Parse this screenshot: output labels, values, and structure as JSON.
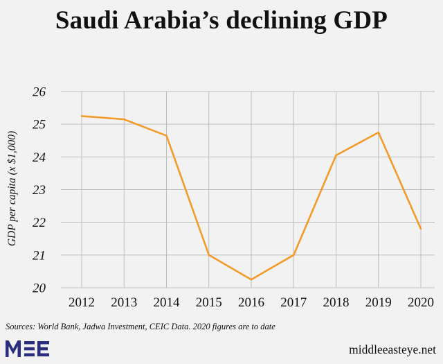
{
  "chart_data": {
    "type": "line",
    "title": "Saudi Arabia’s declining GDP",
    "xlabel": "",
    "ylabel": "GDP per capita (x $1,000)",
    "categories": [
      "2012",
      "2013",
      "2014",
      "2015",
      "2016",
      "2017",
      "2018",
      "2019",
      "2020"
    ],
    "series": [
      {
        "name": "GDP per capita",
        "values": [
          25.25,
          25.15,
          24.65,
          21.0,
          20.25,
          21.0,
          24.05,
          24.75,
          21.8
        ]
      }
    ],
    "ylim": [
      20,
      26
    ],
    "yticks": [
      "20",
      "21",
      "22",
      "23",
      "24",
      "25",
      "26"
    ],
    "grid": true,
    "line_color": "#f29b2a"
  },
  "footer": {
    "sources": "Sources: World Bank, Jadwa Investment, CEIC Data. 2020 figures are to date",
    "site": "middleeasteye.net",
    "logo_text": "MEE"
  },
  "colors": {
    "background": "#f2f2f2",
    "grid": "#bdbdbd",
    "logo": "#2b2d7d"
  }
}
